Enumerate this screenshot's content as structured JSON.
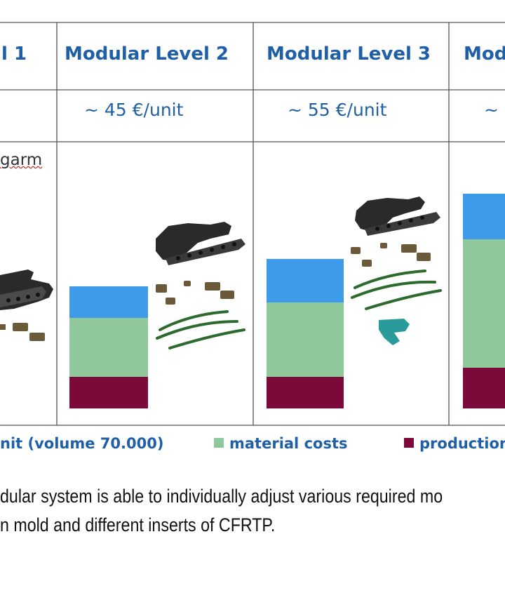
{
  "table": {
    "headers": [
      "l 1",
      "Modular Level 2",
      "Modular Level 3",
      "Mod"
    ],
    "prices": [
      "",
      "~  45 €/unit",
      "~  55 €/unit",
      "~"
    ],
    "row_label": "garm"
  },
  "legend": {
    "items": [
      {
        "label": "nit (volume 70.000)",
        "color": "#3d9be9"
      },
      {
        "label": "material costs",
        "color": "#8fc89a"
      },
      {
        "label": "production",
        "color": "#7b0a3a"
      }
    ]
  },
  "caption": {
    "line1": "dular system is able to individually adjust various required mo",
    "line2": "n mold and different inserts of CFRTP."
  },
  "colors": {
    "header_text": "#1f5fa8",
    "blue_segment": "#3d9be9",
    "green_segment": "#8fc89a",
    "maroon_segment": "#7b0a3a",
    "part_dark": "#2a2a2a",
    "part_green": "#2d6a2d",
    "part_teal": "#2a9b9b"
  },
  "chart_data": {
    "type": "bar",
    "stacked": true,
    "categories": [
      "Modular Level 2",
      "Modular Level 3",
      "Mod"
    ],
    "series": [
      {
        "name": "production",
        "values": [
          45,
          45,
          58
        ],
        "color": "#7b0a3a"
      },
      {
        "name": "material costs",
        "values": [
          84,
          106,
          183
        ],
        "color": "#8fc89a"
      },
      {
        "name": "nit (volume 70.000)",
        "values": [
          45,
          62,
          65
        ],
        "color": "#3d9be9"
      }
    ],
    "ylim": [
      0,
      310
    ],
    "grid": false,
    "legend": "bottom"
  }
}
